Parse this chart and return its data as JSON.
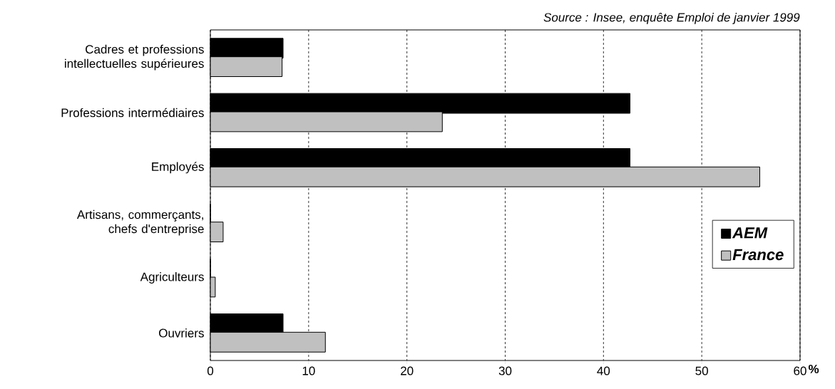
{
  "chart_data": {
    "type": "bar",
    "orientation": "horizontal",
    "categories": [
      "Cadres et professions intellectuelles supérieures",
      "Professions intermédiaires",
      "Employés",
      "Artisans, commerçants, chefs d'entreprise",
      "Agriculteurs",
      "Ouvriers"
    ],
    "series": [
      {
        "name": "AEM",
        "color": "#000000",
        "values": [
          7.4,
          42.7,
          42.7,
          0,
          0,
          7.4
        ]
      },
      {
        "name": "France",
        "color": "#c0c0c0",
        "values": [
          7.3,
          23.6,
          55.9,
          1.3,
          0.5,
          11.7
        ]
      }
    ],
    "xlabel": "%",
    "xlim": [
      0,
      60
    ],
    "xticks": [
      0,
      10,
      20,
      30,
      40,
      50,
      60
    ],
    "grid": "x",
    "legend": "right",
    "annotations": [
      "Source : Insee, enquête Emploi de janvier 1999"
    ]
  }
}
